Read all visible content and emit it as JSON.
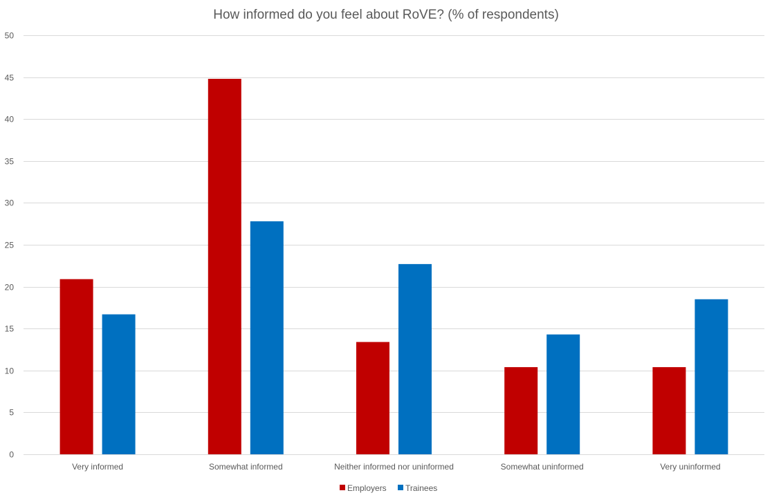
{
  "chart_data": {
    "type": "bar",
    "title": "How informed do you feel about RoVE? (% of respondents)",
    "xlabel": "",
    "ylabel": "",
    "categories": [
      "Very informed",
      "Somewhat informed",
      "Neither informed nor uninformed",
      "Somewhat uninformed",
      "Very uninformed"
    ],
    "series": [
      {
        "name": "Employers",
        "color": "#c00000",
        "values": [
          20.9,
          44.8,
          13.4,
          10.4,
          10.4
        ]
      },
      {
        "name": "Trainees",
        "color": "#0070c0",
        "values": [
          16.7,
          27.8,
          22.7,
          14.3,
          18.5
        ]
      }
    ],
    "ylim": [
      0,
      50
    ],
    "yticks": [
      "0",
      "5",
      "10",
      "15",
      "20",
      "25",
      "30",
      "35",
      "40",
      "45",
      "50"
    ],
    "grid": true,
    "legend": "bottom"
  }
}
